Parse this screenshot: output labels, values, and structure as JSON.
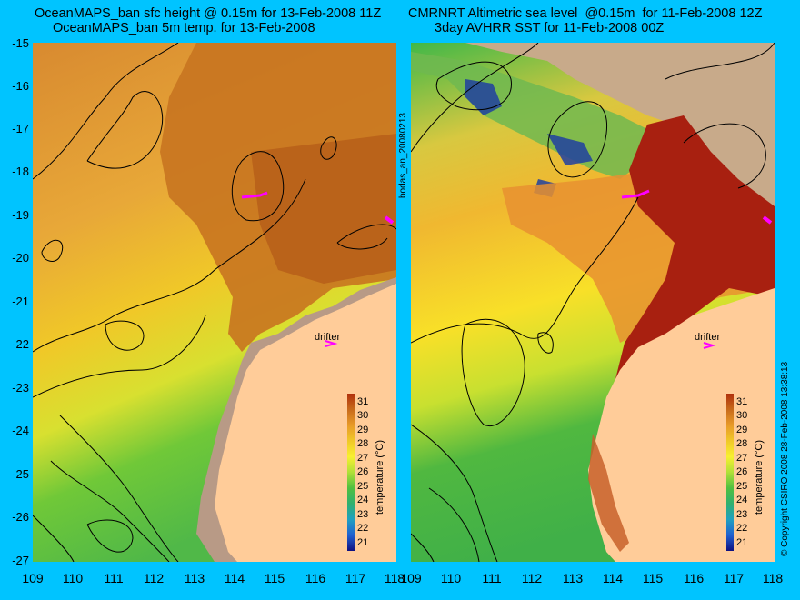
{
  "left_panel": {
    "title_line1": "OceanMAPS_ban sfc height @ 0.15m for 13-Feb-2008 11Z",
    "title_line2": "OceanMAPS_ban 5m temp. for 13-Feb-2008",
    "drifter_label": "drifter"
  },
  "right_panel": {
    "title_line1": "CMRNRT Altimetric sea level  @0.15m  for 11-Feb-2008 12Z",
    "title_line2": "3day AVHRR SST for 11-Feb-2008 00Z",
    "drifter_label": "drifter"
  },
  "axes": {
    "y_ticks": [
      "-15",
      "-16",
      "-17",
      "-18",
      "-19",
      "-20",
      "-21",
      "-22",
      "-23",
      "-24",
      "-25",
      "-26",
      "-27"
    ],
    "x_ticks": [
      "109",
      "110",
      "111",
      "112",
      "113",
      "114",
      "115",
      "116",
      "117",
      "118"
    ]
  },
  "colorbar": {
    "title": "temperature (°C)",
    "labels": [
      "31",
      "30",
      "29",
      "28",
      "27",
      "26",
      "25",
      "24",
      "23",
      "22",
      "21"
    ]
  },
  "side_texts": {
    "middle": "bodas_an_20080213",
    "right": "© Copyright CSIRO 2008   28-Feb-2008 13:38:13"
  },
  "colors": {
    "background": "#00c4ff",
    "land": "#ffcc99",
    "model_land": "#b89a86",
    "warm_sea": "#c8741a",
    "hot_sea": "#a02010",
    "mid_sea": "#f0c020",
    "cool_sea": "#70c830",
    "green_sea": "#40b040",
    "drifter": "#ff00ff"
  }
}
